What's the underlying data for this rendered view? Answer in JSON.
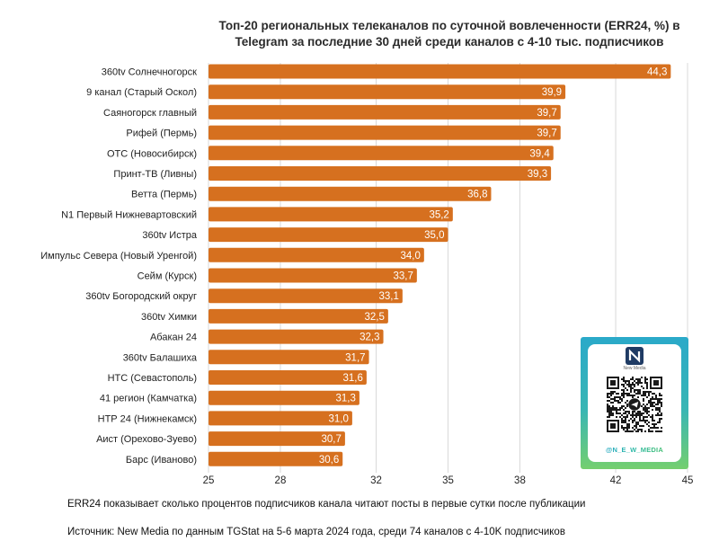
{
  "chart_data": {
    "type": "bar",
    "orientation": "horizontal",
    "title_line1": "Топ-20 региональных телеканалов по суточной вовлеченности (ERR24, %) в",
    "title_line2": "Telegram за последние 30 дней среди каналов с 4-10 тыс. подписчиков",
    "categories": [
      "360tv Солнечногорск",
      "9 канал (Старый Оскол)",
      "Саяногорск главный",
      "Рифей (Пермь)",
      "ОТС (Новосибирск)",
      "Принт-ТВ (Ливны)",
      "Ветта (Пермь)",
      "N1 Первый Нижневартовский",
      "360tv Истра",
      "Импульс Севера (Новый Уренгой)",
      "Сейм (Курск)",
      "360tv Богородский округ",
      "360tv Химки",
      "Абакан 24",
      "360tv Балашиха",
      "НТС (Севастополь)",
      "41 регион (Камчатка)",
      "НТР 24 (Нижнекамск)",
      "Аист (Орехово-Зуево)",
      "Барс (Иваново)"
    ],
    "values": [
      44.3,
      39.9,
      39.7,
      39.7,
      39.4,
      39.3,
      36.8,
      35.2,
      35.0,
      34.0,
      33.7,
      33.1,
      32.5,
      32.3,
      31.7,
      31.6,
      31.3,
      31.0,
      30.7,
      30.6
    ],
    "value_labels": [
      "44,3",
      "39,9",
      "39,7",
      "39,7",
      "39,4",
      "39,3",
      "36,8",
      "35,2",
      "35,0",
      "34,0",
      "33,7",
      "33,1",
      "32,5",
      "32,3",
      "31,7",
      "31,6",
      "31,3",
      "31,0",
      "30,7",
      "30,6"
    ],
    "xlim": [
      25,
      45
    ],
    "xticks": [
      25,
      28,
      32,
      35,
      38,
      42,
      45
    ],
    "xtick_labels": [
      "25",
      "28",
      "32",
      "35",
      "38",
      "42",
      "45"
    ],
    "grid": "vertical",
    "bar_color": "#d6701f",
    "label_color": "#ffffff"
  },
  "notes": {
    "definition": "ERR24 показывает сколько процентов подписчиков канала читают посты в первые сутки после публикации",
    "source": "Источник: New Media по данным TGStat на 5-6 марта 2024 года, среди 74 каналов с 4-10K подписчиков"
  },
  "qr_card": {
    "logo_caption": "New Media",
    "handle": "@N_E_W_MEDIA"
  }
}
